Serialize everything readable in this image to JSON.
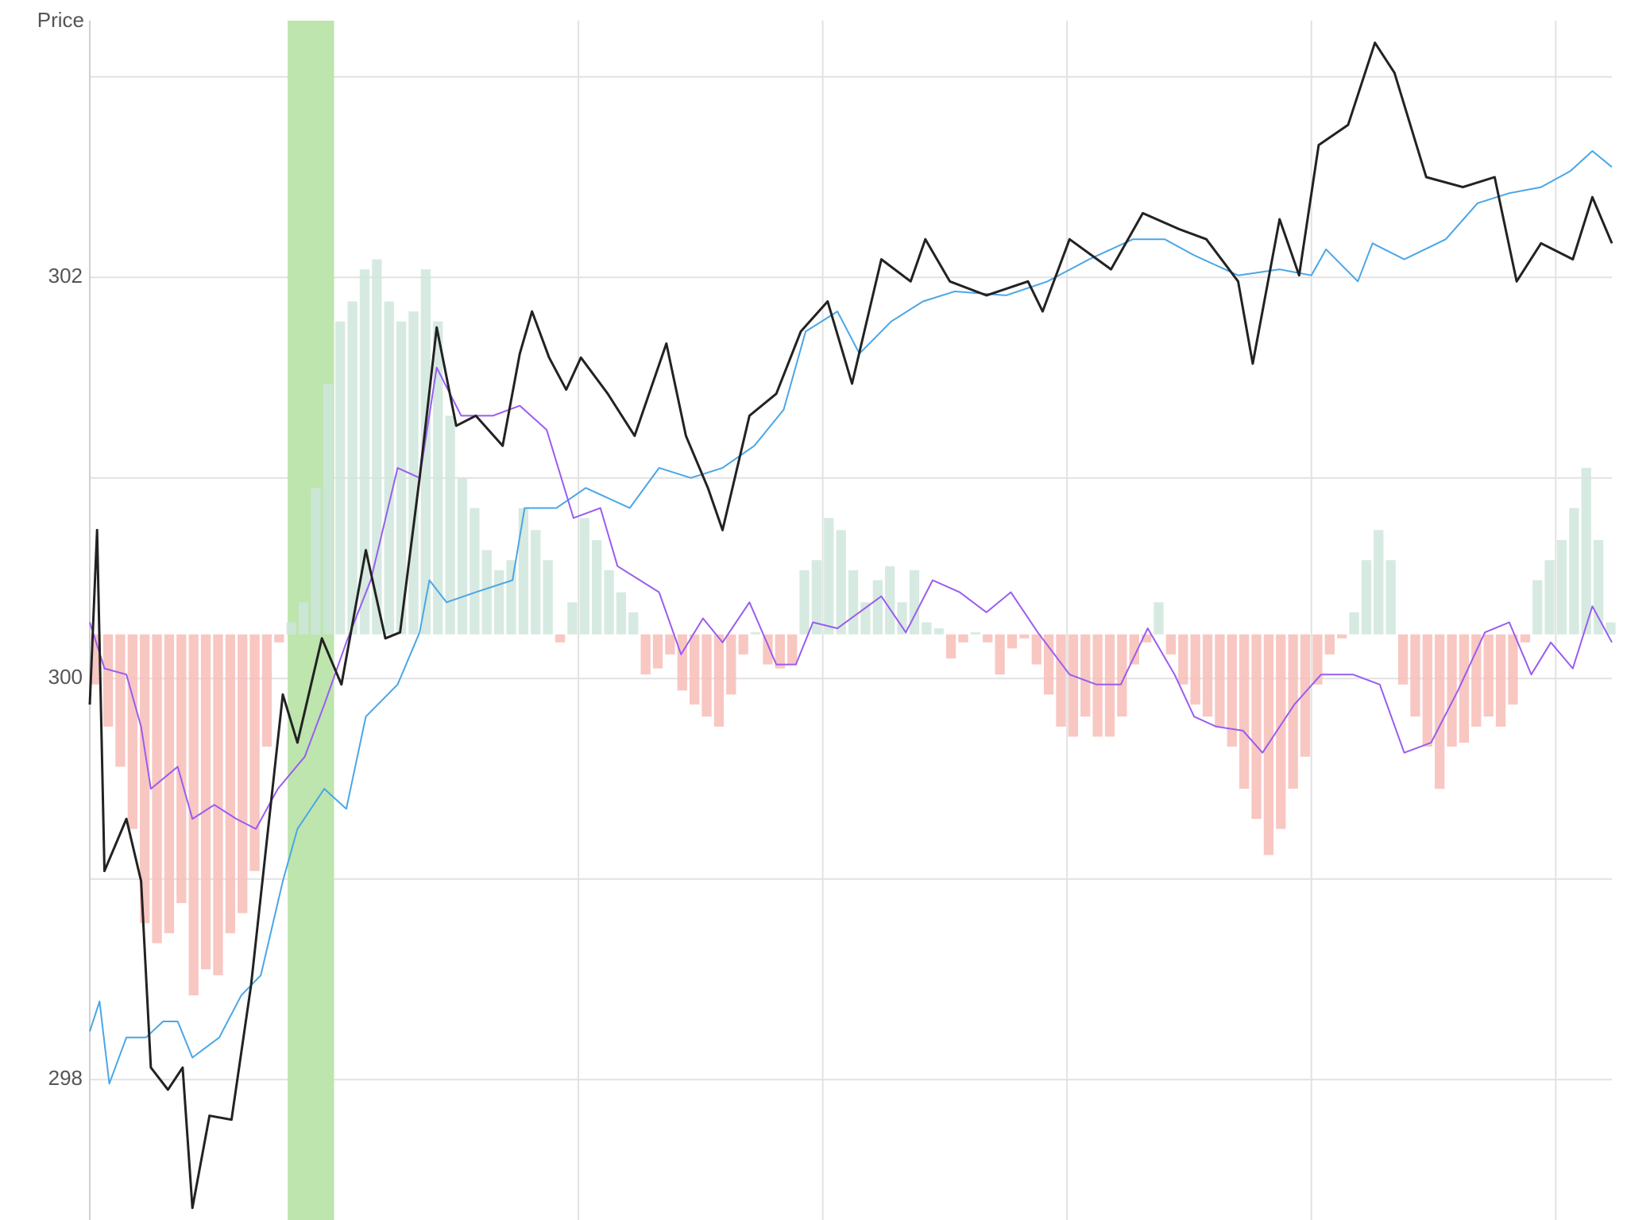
{
  "chart_data": {
    "type": "line",
    "y_label": "Price",
    "xlim": [
      0,
      6.23
    ],
    "ylim": [
      297.3,
      303.28
    ],
    "yticks": [
      298,
      300,
      302
    ],
    "ygrid": [
      299,
      301,
      303
    ],
    "xgrid": [
      2,
      3,
      4,
      5,
      6
    ],
    "grid": true,
    "highlight": {
      "x": [
        0.81,
        1.0
      ],
      "color": "#bde5ad"
    },
    "histogram": {
      "base": 300.22,
      "up_color": "#cfe6dc",
      "down_color": "#f7bdb7",
      "x": [
        0.025,
        0.075,
        0.125,
        0.175,
        0.225,
        0.275,
        0.325,
        0.375,
        0.425,
        0.475,
        0.525,
        0.575,
        0.625,
        0.675,
        0.725,
        0.775,
        0.825,
        0.875,
        0.925,
        0.975,
        1.025,
        1.075,
        1.125,
        1.175,
        1.225,
        1.275,
        1.325,
        1.375,
        1.425,
        1.475,
        1.525,
        1.575,
        1.625,
        1.675,
        1.725,
        1.775,
        1.825,
        1.875,
        1.925,
        1.975,
        2.025,
        2.075,
        2.125,
        2.175,
        2.225,
        2.275,
        2.325,
        2.375,
        2.425,
        2.475,
        2.525,
        2.575,
        2.625,
        2.675,
        2.725,
        2.775,
        2.825,
        2.875,
        2.925,
        2.975,
        3.025,
        3.075,
        3.125,
        3.175,
        3.225,
        3.275,
        3.325,
        3.375,
        3.425,
        3.475,
        3.525,
        3.575,
        3.625,
        3.675,
        3.725,
        3.775,
        3.825,
        3.875,
        3.925,
        3.975,
        4.025,
        4.075,
        4.125,
        4.175,
        4.225,
        4.275,
        4.325,
        4.375,
        4.425,
        4.475,
        4.525,
        4.575,
        4.625,
        4.675,
        4.725,
        4.775,
        4.825,
        4.875,
        4.925,
        4.975,
        5.025,
        5.075,
        5.125,
        5.175,
        5.225,
        5.275,
        5.325,
        5.375,
        5.425,
        5.475,
        5.525,
        5.575,
        5.625,
        5.675,
        5.725,
        5.775,
        5.825,
        5.875,
        5.925,
        5.975,
        6.025,
        6.075,
        6.125,
        6.175,
        6.225
      ],
      "values": [
        299.97,
        299.76,
        299.56,
        299.25,
        298.78,
        298.68,
        298.73,
        298.88,
        298.42,
        298.55,
        298.52,
        298.73,
        298.83,
        299.04,
        299.66,
        300.18,
        300.28,
        300.38,
        300.95,
        301.47,
        301.78,
        301.88,
        302.04,
        302.09,
        301.88,
        301.78,
        301.83,
        302.04,
        301.78,
        301.31,
        301.0,
        300.85,
        300.64,
        300.54,
        300.59,
        300.85,
        300.74,
        300.59,
        300.18,
        300.38,
        300.8,
        300.69,
        300.54,
        300.43,
        300.33,
        300.02,
        300.05,
        300.12,
        299.94,
        299.87,
        299.81,
        299.76,
        299.92,
        300.12,
        300.23,
        300.07,
        300.05,
        300.07,
        300.54,
        300.59,
        300.8,
        300.74,
        300.54,
        300.38,
        300.49,
        300.56,
        300.38,
        300.54,
        300.28,
        300.25,
        300.1,
        300.18,
        300.23,
        300.18,
        300.02,
        300.15,
        300.2,
        300.07,
        299.92,
        299.76,
        299.71,
        299.81,
        299.71,
        299.71,
        299.81,
        300.07,
        300.18,
        300.38,
        300.12,
        299.97,
        299.87,
        299.81,
        299.76,
        299.66,
        299.45,
        299.3,
        299.12,
        299.25,
        299.45,
        299.61,
        299.97,
        300.12,
        300.2,
        300.33,
        300.59,
        300.74,
        300.59,
        299.97,
        299.81,
        299.66,
        299.45,
        299.66,
        299.68,
        299.76,
        299.81,
        299.76,
        299.87,
        300.18,
        300.49,
        300.59,
        300.69,
        300.85,
        301.05,
        300.69,
        300.28
      ]
    },
    "series": [
      {
        "color": "#4aa6e6",
        "width": 2,
        "x": [
          0,
          0.04,
          0.08,
          0.15,
          0.23,
          0.3,
          0.36,
          0.42,
          0.53,
          0.62,
          0.7,
          0.79,
          0.85,
          0.96,
          1.05,
          1.13,
          1.26,
          1.35,
          1.39,
          1.46,
          1.58,
          1.73,
          1.78,
          1.91,
          2.03,
          2.21,
          2.33,
          2.46,
          2.59,
          2.72,
          2.84,
          2.93,
          3.06,
          3.15,
          3.28,
          3.41,
          3.54,
          3.75,
          3.92,
          4.09,
          4.27,
          4.4,
          4.52,
          4.7,
          4.87,
          5.0,
          5.06,
          5.19,
          5.25,
          5.38,
          5.55,
          5.68,
          5.81,
          5.94,
          6.06,
          6.15,
          6.23
        ],
        "values": [
          298.24,
          298.39,
          297.98,
          298.21,
          298.21,
          298.29,
          298.29,
          298.11,
          298.21,
          298.42,
          298.52,
          298.99,
          299.25,
          299.45,
          299.35,
          299.81,
          299.97,
          300.23,
          300.49,
          300.38,
          300.43,
          300.49,
          300.85,
          300.85,
          300.95,
          300.85,
          301.05,
          301.0,
          301.05,
          301.16,
          301.34,
          301.73,
          301.83,
          301.62,
          301.78,
          301.88,
          301.93,
          301.91,
          301.98,
          302.09,
          302.19,
          302.19,
          302.11,
          302.01,
          302.04,
          302.01,
          302.14,
          301.98,
          302.17,
          302.09,
          302.19,
          302.37,
          302.42,
          302.45,
          302.53,
          302.63,
          302.55
        ]
      },
      {
        "color": "#9a5cf0",
        "width": 2,
        "x": [
          0,
          0.06,
          0.15,
          0.21,
          0.25,
          0.36,
          0.42,
          0.51,
          0.6,
          0.68,
          0.77,
          0.88,
          0.96,
          1.05,
          1.15,
          1.26,
          1.35,
          1.42,
          1.52,
          1.65,
          1.76,
          1.87,
          1.98,
          2.09,
          2.16,
          2.33,
          2.42,
          2.51,
          2.59,
          2.7,
          2.81,
          2.89,
          2.96,
          3.06,
          3.24,
          3.34,
          3.45,
          3.56,
          3.67,
          3.77,
          3.88,
          4.01,
          4.12,
          4.22,
          4.33,
          4.44,
          4.52,
          4.61,
          4.72,
          4.8,
          4.93,
          5.04,
          5.17,
          5.28,
          5.38,
          5.49,
          5.6,
          5.71,
          5.81,
          5.9,
          5.98,
          6.07,
          6.15,
          6.23
        ],
        "values": [
          300.28,
          300.05,
          300.02,
          299.76,
          299.45,
          299.56,
          299.3,
          299.37,
          299.3,
          299.25,
          299.45,
          299.61,
          299.87,
          300.18,
          300.49,
          301.05,
          301.0,
          301.55,
          301.31,
          301.31,
          301.36,
          301.24,
          300.8,
          300.85,
          300.56,
          300.43,
          300.12,
          300.3,
          300.18,
          300.38,
          300.07,
          300.07,
          300.28,
          300.25,
          300.41,
          300.23,
          300.49,
          300.43,
          300.33,
          300.43,
          300.23,
          300.02,
          299.97,
          299.97,
          300.25,
          300.02,
          299.81,
          299.76,
          299.74,
          299.63,
          299.87,
          300.02,
          300.02,
          299.97,
          299.63,
          299.68,
          299.94,
          300.23,
          300.28,
          300.02,
          300.18,
          300.05,
          300.36,
          300.18
        ]
      },
      {
        "color": "#222222",
        "width": 3,
        "x": [
          0,
          0.03,
          0.06,
          0.15,
          0.21,
          0.25,
          0.32,
          0.38,
          0.42,
          0.49,
          0.58,
          0.66,
          0.73,
          0.79,
          0.85,
          0.95,
          1.03,
          1.13,
          1.21,
          1.27,
          1.35,
          1.42,
          1.5,
          1.58,
          1.69,
          1.76,
          1.81,
          1.88,
          1.95,
          2.01,
          2.12,
          2.23,
          2.36,
          2.44,
          2.53,
          2.59,
          2.7,
          2.81,
          2.91,
          3.02,
          3.12,
          3.24,
          3.36,
          3.42,
          3.52,
          3.67,
          3.84,
          3.9,
          4.01,
          4.18,
          4.31,
          4.46,
          4.57,
          4.7,
          4.76,
          4.87,
          4.95,
          5.03,
          5.15,
          5.26,
          5.34,
          5.47,
          5.62,
          5.75,
          5.84,
          5.94,
          6.07,
          6.15,
          6.23
        ],
        "values": [
          299.87,
          300.74,
          299.04,
          299.3,
          298.99,
          298.06,
          297.95,
          298.06,
          297.36,
          297.82,
          297.8,
          298.47,
          299.25,
          299.92,
          299.68,
          300.2,
          299.97,
          300.64,
          300.2,
          300.23,
          301.0,
          301.75,
          301.26,
          301.31,
          301.16,
          301.62,
          301.83,
          301.6,
          301.44,
          301.6,
          301.42,
          301.21,
          301.67,
          301.21,
          300.95,
          300.74,
          301.31,
          301.42,
          301.73,
          301.88,
          301.47,
          302.09,
          301.98,
          302.19,
          301.98,
          301.91,
          301.98,
          301.83,
          302.19,
          302.04,
          302.32,
          302.24,
          302.19,
          301.98,
          301.57,
          302.29,
          302.01,
          302.66,
          302.76,
          303.17,
          303.02,
          302.5,
          302.45,
          302.5,
          301.98,
          302.17,
          302.09,
          302.4,
          302.17
        ]
      }
    ]
  }
}
